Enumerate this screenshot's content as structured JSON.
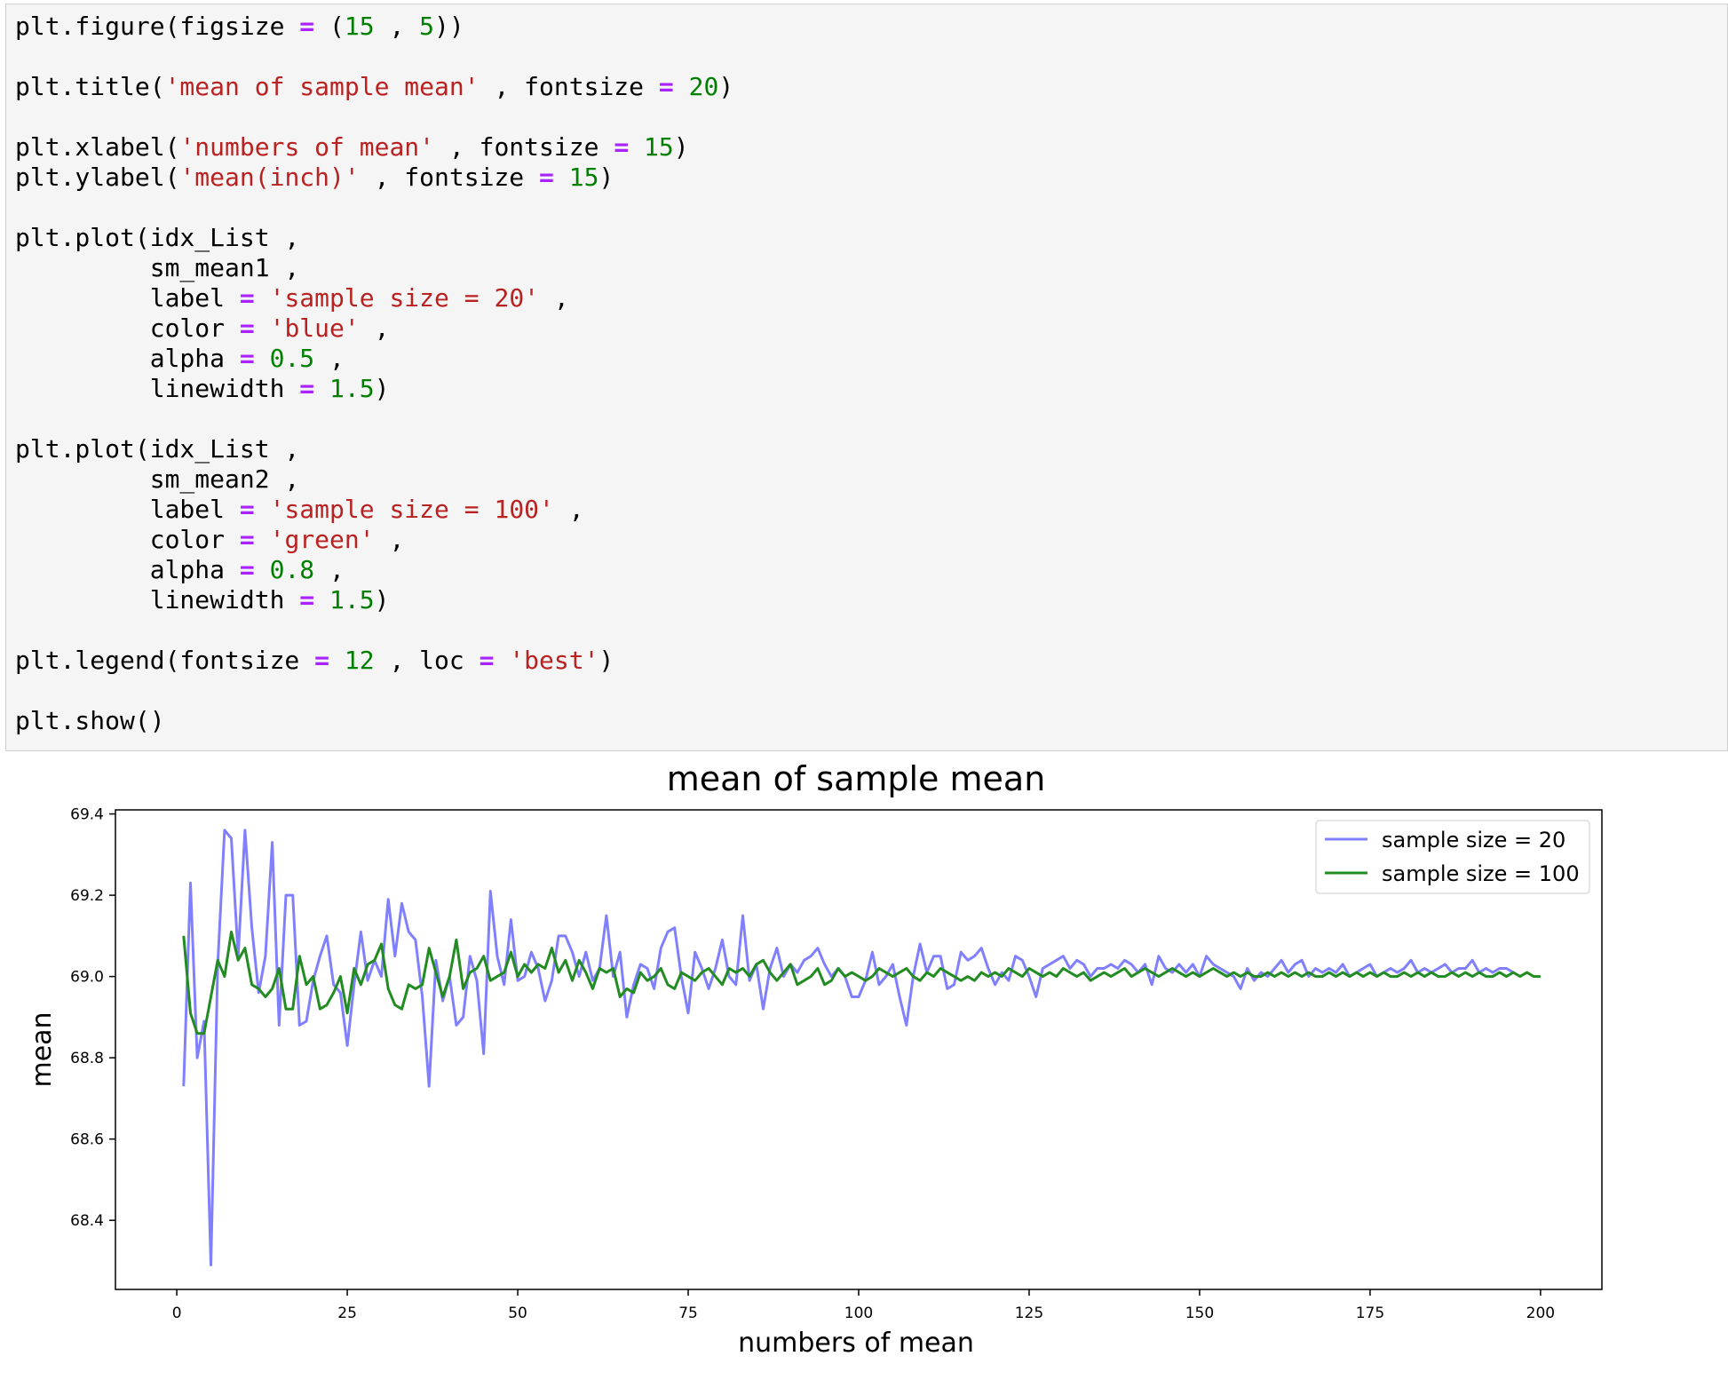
{
  "code_cell": {
    "lines": [
      [
        [
          "plt.figure(figsize ",
          "plain"
        ],
        [
          "=",
          "op"
        ],
        [
          " (",
          "plain"
        ],
        [
          "15",
          "num"
        ],
        [
          " , ",
          "plain"
        ],
        [
          "5",
          "num"
        ],
        [
          "))",
          "plain"
        ]
      ],
      [],
      [
        [
          "plt.title(",
          "plain"
        ],
        [
          "'mean of sample mean'",
          "str"
        ],
        [
          " , fontsize ",
          "plain"
        ],
        [
          "=",
          "op"
        ],
        [
          " ",
          "plain"
        ],
        [
          "20",
          "num"
        ],
        [
          ")",
          "plain"
        ]
      ],
      [],
      [
        [
          "plt.xlabel(",
          "plain"
        ],
        [
          "'numbers of mean'",
          "str"
        ],
        [
          " , fontsize ",
          "plain"
        ],
        [
          "=",
          "op"
        ],
        [
          " ",
          "plain"
        ],
        [
          "15",
          "num"
        ],
        [
          ")",
          "plain"
        ]
      ],
      [
        [
          "plt.ylabel(",
          "plain"
        ],
        [
          "'mean(inch)'",
          "str"
        ],
        [
          " , fontsize ",
          "plain"
        ],
        [
          "=",
          "op"
        ],
        [
          " ",
          "plain"
        ],
        [
          "15",
          "num"
        ],
        [
          ")",
          "plain"
        ]
      ],
      [],
      [
        [
          "plt.plot(idx_List ,",
          "plain"
        ]
      ],
      [
        [
          "         sm_mean1 ,",
          "plain"
        ]
      ],
      [
        [
          "         label ",
          "plain"
        ],
        [
          "=",
          "op"
        ],
        [
          " ",
          "plain"
        ],
        [
          "'sample size = 20'",
          "str"
        ],
        [
          " ,",
          "plain"
        ]
      ],
      [
        [
          "         color ",
          "plain"
        ],
        [
          "=",
          "op"
        ],
        [
          " ",
          "plain"
        ],
        [
          "'blue'",
          "str"
        ],
        [
          " ,",
          "plain"
        ]
      ],
      [
        [
          "         alpha ",
          "plain"
        ],
        [
          "=",
          "op"
        ],
        [
          " ",
          "plain"
        ],
        [
          "0.5",
          "num"
        ],
        [
          " ,",
          "plain"
        ]
      ],
      [
        [
          "         linewidth ",
          "plain"
        ],
        [
          "=",
          "op"
        ],
        [
          " ",
          "plain"
        ],
        [
          "1.5",
          "num"
        ],
        [
          ")",
          "plain"
        ]
      ],
      [],
      [
        [
          "plt.plot(idx_List ,",
          "plain"
        ]
      ],
      [
        [
          "         sm_mean2 ,",
          "plain"
        ]
      ],
      [
        [
          "         label ",
          "plain"
        ],
        [
          "=",
          "op"
        ],
        [
          " ",
          "plain"
        ],
        [
          "'sample size = 100'",
          "str"
        ],
        [
          " ,",
          "plain"
        ]
      ],
      [
        [
          "         color ",
          "plain"
        ],
        [
          "=",
          "op"
        ],
        [
          " ",
          "plain"
        ],
        [
          "'green'",
          "str"
        ],
        [
          " ,",
          "plain"
        ]
      ],
      [
        [
          "         alpha ",
          "plain"
        ],
        [
          "=",
          "op"
        ],
        [
          " ",
          "plain"
        ],
        [
          "0.8",
          "num"
        ],
        [
          " ,",
          "plain"
        ]
      ],
      [
        [
          "         linewidth ",
          "plain"
        ],
        [
          "=",
          "op"
        ],
        [
          " ",
          "plain"
        ],
        [
          "1.5",
          "num"
        ],
        [
          ")",
          "plain"
        ]
      ],
      [],
      [
        [
          "plt.legend(fontsize ",
          "plain"
        ],
        [
          "=",
          "op"
        ],
        [
          " ",
          "plain"
        ],
        [
          "12",
          "num"
        ],
        [
          " , loc ",
          "plain"
        ],
        [
          "=",
          "op"
        ],
        [
          " ",
          "plain"
        ],
        [
          "'best'",
          "str"
        ],
        [
          ")",
          "plain"
        ]
      ],
      [],
      [
        [
          "plt.show()",
          "plain"
        ]
      ]
    ]
  },
  "chart_data": {
    "type": "line",
    "title": "mean of sample mean",
    "xlabel": "numbers of mean",
    "ylabel": "mean",
    "xlim": [
      -9,
      209
    ],
    "ylim": [
      68.23,
      69.41
    ],
    "xticks": [
      0,
      25,
      50,
      75,
      100,
      125,
      150,
      175,
      200
    ],
    "xtick_labels": [
      "0",
      "25",
      "50",
      "75",
      "100",
      "125",
      "150",
      "175",
      "200"
    ],
    "yticks": [
      68.4,
      68.6,
      68.8,
      69.0,
      69.2,
      69.4
    ],
    "ytick_labels": [
      "68.4",
      "68.6",
      "68.8",
      "69.0",
      "69.2",
      "69.4"
    ],
    "grid": false,
    "legend_position": "top-right",
    "x_start": 1,
    "series": [
      {
        "name": "sample size = 20",
        "color": "#8080ff",
        "values": [
          68.73,
          69.23,
          68.8,
          68.89,
          68.29,
          69.03,
          69.36,
          69.34,
          69.05,
          69.36,
          69.12,
          68.96,
          69.05,
          69.33,
          68.88,
          69.2,
          69.2,
          68.88,
          68.89,
          68.99,
          69.05,
          69.1,
          68.98,
          68.96,
          68.83,
          68.98,
          69.11,
          68.99,
          69.04,
          69.0,
          69.19,
          69.05,
          69.18,
          69.11,
          69.09,
          68.95,
          68.73,
          69.04,
          68.94,
          69.0,
          68.88,
          68.9,
          69.05,
          68.99,
          68.81,
          69.21,
          69.05,
          68.98,
          69.14,
          68.99,
          69.0,
          69.06,
          69.02,
          68.94,
          68.99,
          69.1,
          69.1,
          69.06,
          69.0,
          69.06,
          68.99,
          69.02,
          69.15,
          69.0,
          69.06,
          68.9,
          68.98,
          69.03,
          69.02,
          68.97,
          69.07,
          69.11,
          69.12,
          69.0,
          68.91,
          69.06,
          69.02,
          68.97,
          69.02,
          69.09,
          69.0,
          68.98,
          69.15,
          68.99,
          69.03,
          68.92,
          69.02,
          69.07,
          69.0,
          69.03,
          69.01,
          69.04,
          69.05,
          69.07,
          69.03,
          69.0,
          69.02,
          69.0,
          68.95,
          68.95,
          68.99,
          69.06,
          68.98,
          69.0,
          69.03,
          68.95,
          68.88,
          69.0,
          69.08,
          69.01,
          69.05,
          69.05,
          68.97,
          68.98,
          69.06,
          69.04,
          69.05,
          69.07,
          69.02,
          68.98,
          69.01,
          68.99,
          69.05,
          69.04,
          69.0,
          68.95,
          69.02,
          69.03,
          69.04,
          69.05,
          69.02,
          69.04,
          69.03,
          69.0,
          69.02,
          69.02,
          69.03,
          69.02,
          69.04,
          69.03,
          69.01,
          69.03,
          68.98,
          69.05,
          69.02,
          69.01,
          69.03,
          69.01,
          69.03,
          69.0,
          69.05,
          69.03,
          69.02,
          69.01,
          69.0,
          68.97,
          69.02,
          68.99,
          69.01,
          69.0,
          69.02,
          69.04,
          69.01,
          69.03,
          69.04,
          69.0,
          69.02,
          69.01,
          69.02,
          69.01,
          69.03,
          69.0,
          69.01,
          69.02,
          69.03,
          69.0,
          69.01,
          69.02,
          69.01,
          69.02,
          69.04,
          69.01,
          69.02,
          69.01,
          69.02,
          69.03,
          69.01,
          69.02,
          69.02,
          69.04,
          69.01,
          69.02,
          69.01,
          69.02,
          69.02,
          69.01
        ]
      },
      {
        "name": "sample size = 100",
        "color": "#228b22",
        "values": [
          69.1,
          68.91,
          68.86,
          68.86,
          68.95,
          69.04,
          69.0,
          69.11,
          69.04,
          69.07,
          68.98,
          68.97,
          68.95,
          68.97,
          69.02,
          68.92,
          68.92,
          69.05,
          68.98,
          69.0,
          68.92,
          68.93,
          68.96,
          69.0,
          68.91,
          69.02,
          68.98,
          69.03,
          69.04,
          69.08,
          68.97,
          68.93,
          68.92,
          68.98,
          68.97,
          68.98,
          69.07,
          69.01,
          68.95,
          69.0,
          69.09,
          68.97,
          69.01,
          69.02,
          69.05,
          68.99,
          69.0,
          69.01,
          69.06,
          69.0,
          69.03,
          69.01,
          69.03,
          69.02,
          69.07,
          69.01,
          69.04,
          68.99,
          69.04,
          69.01,
          68.97,
          69.02,
          69.01,
          69.02,
          68.95,
          68.97,
          68.96,
          69.01,
          68.99,
          69.0,
          69.02,
          68.98,
          68.97,
          69.01,
          69.0,
          68.99,
          69.01,
          69.02,
          69.0,
          68.98,
          69.02,
          69.01,
          69.02,
          69.0,
          69.03,
          69.04,
          69.01,
          68.99,
          69.01,
          69.03,
          68.98,
          68.99,
          69.0,
          69.02,
          68.98,
          68.99,
          69.02,
          69.0,
          69.01,
          69.0,
          68.99,
          69.0,
          69.02,
          69.01,
          69.0,
          69.01,
          69.02,
          69.0,
          68.99,
          69.01,
          69.0,
          69.02,
          69.01,
          69.0,
          68.99,
          69.0,
          68.99,
          69.01,
          69.0,
          69.01,
          69.0,
          69.02,
          69.01,
          69.0,
          69.02,
          69.01,
          69.0,
          69.01,
          69.0,
          69.02,
          69.01,
          69.0,
          69.01,
          68.99,
          69.0,
          69.01,
          69.0,
          69.01,
          69.02,
          69.0,
          69.01,
          69.02,
          69.01,
          69.0,
          69.01,
          69.02,
          69.01,
          69.0,
          69.01,
          69.0,
          69.01,
          69.02,
          69.01,
          69.0,
          69.01,
          69.0,
          69.01,
          69.0,
          69.0,
          69.01,
          69.0,
          69.01,
          69.0,
          69.01,
          69.0,
          69.01,
          69.0,
          69.0,
          69.01,
          69.0,
          69.01,
          69.0,
          69.01,
          69.0,
          69.01,
          69.0,
          69.01,
          69.0,
          69.0,
          69.01,
          69.0,
          69.01,
          69.0,
          69.01,
          69.0,
          69.0,
          69.01,
          69.0,
          69.01,
          69.0,
          69.01,
          69.0,
          69.0,
          69.01,
          69.0,
          69.01,
          69.0,
          69.01,
          69.0,
          69.0
        ]
      }
    ]
  }
}
